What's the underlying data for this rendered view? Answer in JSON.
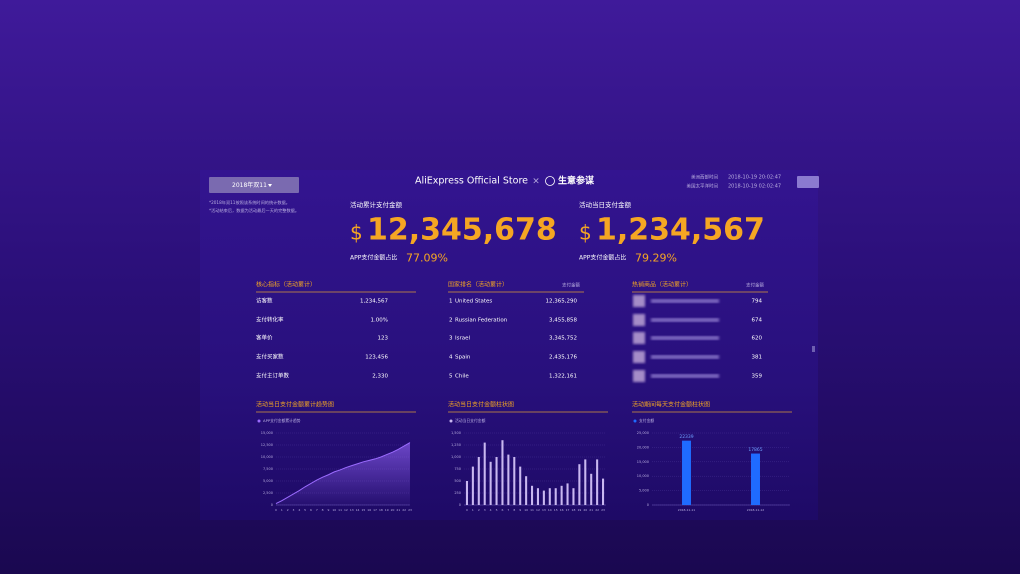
{
  "header": {
    "event_select": "2018年双11",
    "notes": [
      "*2018年双11按照该系统时间的统计数据。",
      "*活动结束后，数据为活动最后一天的完整数据。"
    ],
    "title": "AliExpress Official Store",
    "separator": "×",
    "partner": "生意参谋",
    "times": [
      {
        "label": "美洲西部时间",
        "value": "2018-10-19 20:02:47"
      },
      {
        "label": "美国太平洋时间",
        "value": "2018-10-19 02:02:47"
      }
    ]
  },
  "kpis": [
    {
      "label": "活动累计支付金额",
      "currency": "$",
      "value": "12,345,678",
      "app_share_label": "APP支付金额占比",
      "app_share": "77.09%"
    },
    {
      "label": "活动当日支付金额",
      "currency": "$",
      "value": "1,234,567",
      "app_share_label": "APP支付金额占比",
      "app_share": "79.29%"
    }
  ],
  "core_metrics": {
    "title": "核心指标（活动累计）",
    "rows": [
      [
        "访客数",
        "1,234,567"
      ],
      [
        "支付转化率",
        "1.00%"
      ],
      [
        "客单价",
        "123"
      ],
      [
        "支付买家数",
        "123,456"
      ],
      [
        "支付主订单数",
        "2,330"
      ]
    ]
  },
  "country_ranking": {
    "title": "国家排名（活动累计）",
    "value_header": "支付金额",
    "rows": [
      [
        "1",
        "United States",
        "12,365,290"
      ],
      [
        "2",
        "Russian Federation",
        "3,455,858"
      ],
      [
        "3",
        "Israel",
        "3,345,752"
      ],
      [
        "4",
        "Spain",
        "2,435,176"
      ],
      [
        "5",
        "Chile",
        "1,322,161"
      ]
    ]
  },
  "hot_products": {
    "title": "热销商品（活动累计）",
    "value_header": "支付金额",
    "rows": [
      "794",
      "674",
      "620",
      "381",
      "359"
    ]
  },
  "chart_data": [
    {
      "type": "line",
      "title": "活动当日支付金额累计趋势图",
      "x": [
        0,
        1,
        2,
        3,
        4,
        5,
        6,
        7,
        8,
        9,
        10,
        11,
        12,
        13,
        14,
        15,
        16,
        17,
        18,
        19,
        20,
        21,
        22,
        23
      ],
      "xlim": [
        0,
        23
      ],
      "series": [
        {
          "name": "APP支付金额累计趋势",
          "color": "#9b6bff",
          "values": [
            300,
            900,
            1600,
            2300,
            3000,
            3800,
            4500,
            5200,
            5800,
            6300,
            6900,
            7300,
            7800,
            8200,
            8600,
            9000,
            9300,
            9600,
            10000,
            10500,
            11000,
            11600,
            12300,
            13000
          ]
        }
      ],
      "ylim": [
        0,
        15000
      ],
      "yticks": [
        0,
        {
          "value": 2500,
          "label": "2,500"
        },
        {
          "value": 5000,
          "label": "5,000"
        },
        {
          "value": 7500,
          "label": "7,500"
        },
        {
          "value": 10000,
          "label": "10,000"
        },
        {
          "value": 12500,
          "label": "12,500"
        },
        {
          "value": 15000,
          "label": "15,000"
        }
      ],
      "grid": true
    },
    {
      "type": "bar",
      "title": "活动当日支付金额柱状图",
      "x": [
        0,
        1,
        2,
        3,
        4,
        5,
        6,
        7,
        8,
        9,
        10,
        11,
        12,
        13,
        14,
        15,
        16,
        17,
        18,
        19,
        20,
        21,
        22,
        23
      ],
      "xlim": [
        -0.5,
        23.5
      ],
      "series": [
        {
          "name": "活动当日支付金额",
          "color": "#c9b8f0",
          "values": [
            500,
            800,
            1000,
            1300,
            900,
            1000,
            1350,
            1050,
            1000,
            800,
            600,
            400,
            350,
            300,
            350,
            350,
            400,
            450,
            350,
            850,
            950,
            650,
            950,
            550
          ]
        }
      ],
      "ylim": [
        0,
        1500
      ],
      "yticks": [
        0,
        250,
        500,
        750,
        {
          "value": 1000,
          "label": "1,000"
        },
        {
          "value": 1250,
          "label": "1,250"
        },
        {
          "value": 1500,
          "label": "1,500"
        }
      ],
      "grid": true
    },
    {
      "type": "bar",
      "title": "活动期间每天支付金额柱状图",
      "categories": [
        "2018-11-11",
        "2018-11-12"
      ],
      "series": [
        {
          "name": "支付金额",
          "color": "#1f6bff",
          "values": [
            22339,
            17865
          ]
        }
      ],
      "show_value_labels": true,
      "ylim": [
        0,
        25000
      ],
      "yticks": [
        0,
        {
          "value": 5000,
          "label": "5,000"
        },
        {
          "value": 10000,
          "label": "10,000"
        },
        {
          "value": 15000,
          "label": "15,000"
        },
        {
          "value": 20000,
          "label": "20,000"
        },
        {
          "value": 25000,
          "label": "25,000"
        }
      ],
      "grid": true
    }
  ]
}
